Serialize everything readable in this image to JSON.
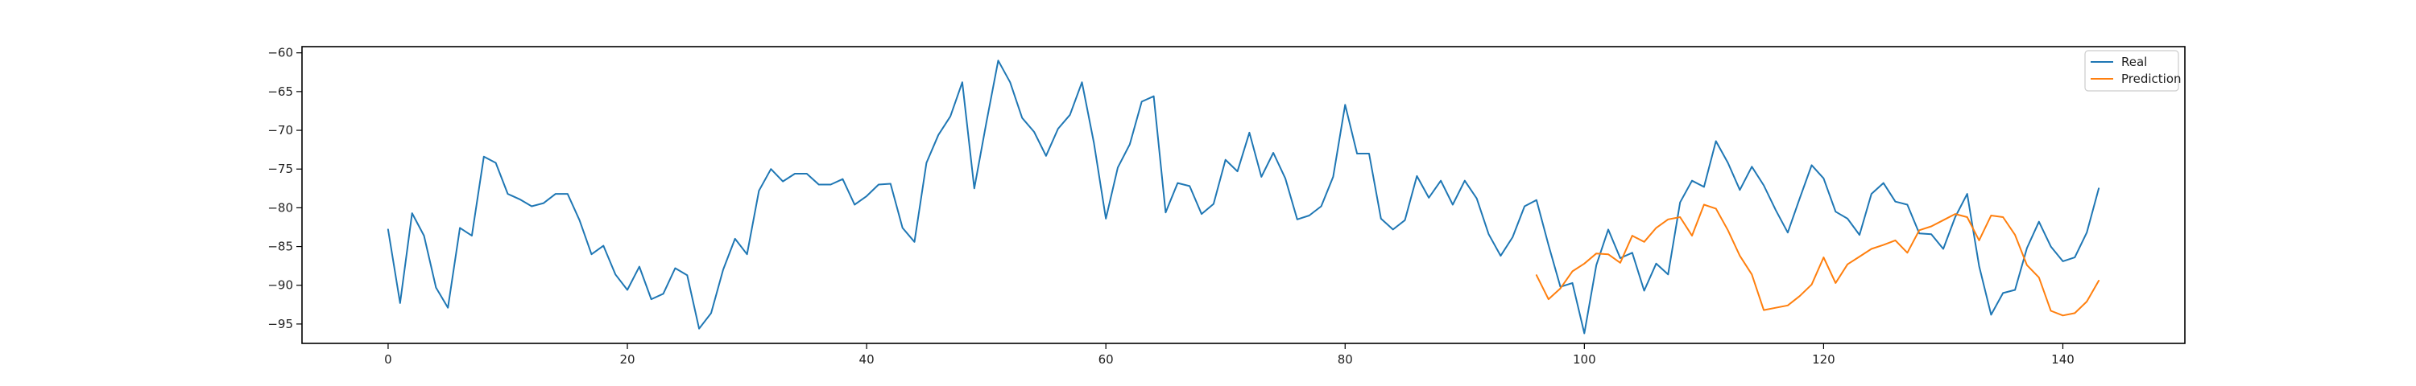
{
  "chart_data": {
    "type": "line",
    "title": "",
    "xlabel": "",
    "ylabel": "",
    "xlim": [
      -7.2,
      150.2
    ],
    "ylim": [
      -97.5,
      -59.2
    ],
    "x_ticks": [
      0,
      20,
      40,
      60,
      80,
      100,
      120,
      140
    ],
    "y_ticks": [
      -60,
      -65,
      -70,
      -75,
      -80,
      -85,
      -90,
      -95
    ],
    "grid": false,
    "legend_position": "top-right",
    "series": [
      {
        "name": "Real",
        "color": "#1f77b4",
        "x_start": 0,
        "values": [
          -82.8,
          -92.3,
          -80.7,
          -83.6,
          -90.3,
          -92.9,
          -82.6,
          -83.6,
          -73.4,
          -74.2,
          -78.2,
          -78.9,
          -79.8,
          -79.4,
          -78.2,
          -78.2,
          -81.6,
          -86.0,
          -84.9,
          -88.6,
          -90.6,
          -87.6,
          -91.8,
          -91.1,
          -87.8,
          -88.7,
          -95.6,
          -93.6,
          -88.0,
          -84.0,
          -86.0,
          -77.8,
          -75.0,
          -76.6,
          -75.6,
          -75.6,
          -77.0,
          -77.0,
          -76.3,
          -79.6,
          -78.5,
          -77.0,
          -76.9,
          -82.6,
          -84.4,
          -74.2,
          -70.6,
          -68.2,
          -63.8,
          -77.5,
          -69.1,
          -61.0,
          -63.8,
          -68.4,
          -70.2,
          -73.3,
          -69.8,
          -68.0,
          -63.8,
          -71.6,
          -81.4,
          -74.8,
          -71.8,
          -66.3,
          -65.6,
          -80.6,
          -76.8,
          -77.2,
          -80.8,
          -79.5,
          -73.8,
          -75.3,
          -70.3,
          -76.0,
          -72.9,
          -76.2,
          -81.5,
          -81.0,
          -79.8,
          -76.0,
          -66.7,
          -73.0,
          -73.0,
          -81.4,
          -82.8,
          -81.6,
          -75.9,
          -78.7,
          -76.5,
          -79.6,
          -76.5,
          -78.8,
          -83.4,
          -86.2,
          -83.8,
          -79.8,
          -79.0,
          -84.8,
          -90.2,
          -89.7,
          -96.2,
          -87.4,
          -82.8,
          -86.5,
          -85.8,
          -90.7,
          -87.2,
          -88.6,
          -79.3,
          -76.5,
          -77.3,
          -71.4,
          -74.2,
          -77.7,
          -74.7,
          -77.1,
          -80.3,
          -83.2,
          -78.8,
          -74.5,
          -76.2,
          -80.5,
          -81.4,
          -83.5,
          -78.2,
          -76.8,
          -79.2,
          -79.6,
          -83.3,
          -83.4,
          -85.3,
          -81.2,
          -78.2,
          -87.5,
          -93.8,
          -91.0,
          -90.6,
          -85.2,
          -81.8,
          -85.0,
          -86.9,
          -86.4,
          -83.2,
          -77.5
        ]
      },
      {
        "name": "Prediction",
        "color": "#ff7f0e",
        "x_start": 96,
        "values": [
          -88.7,
          -91.8,
          -90.4,
          -88.2,
          -87.2,
          -85.9,
          -86.0,
          -87.1,
          -83.6,
          -84.4,
          -82.6,
          -81.5,
          -81.2,
          -83.6,
          -79.6,
          -80.1,
          -82.9,
          -86.2,
          -88.6,
          -93.2,
          -92.9,
          -92.6,
          -91.4,
          -89.9,
          -86.4,
          -89.7,
          -87.3,
          -86.3,
          -85.3,
          -84.8,
          -84.2,
          -85.8,
          -82.9,
          -82.4,
          -81.6,
          -80.8,
          -81.2,
          -84.2,
          -81.0,
          -81.2,
          -83.5,
          -87.4,
          -89.0,
          -93.3,
          -93.9,
          -93.6,
          -92.1,
          -89.4
        ]
      }
    ]
  }
}
